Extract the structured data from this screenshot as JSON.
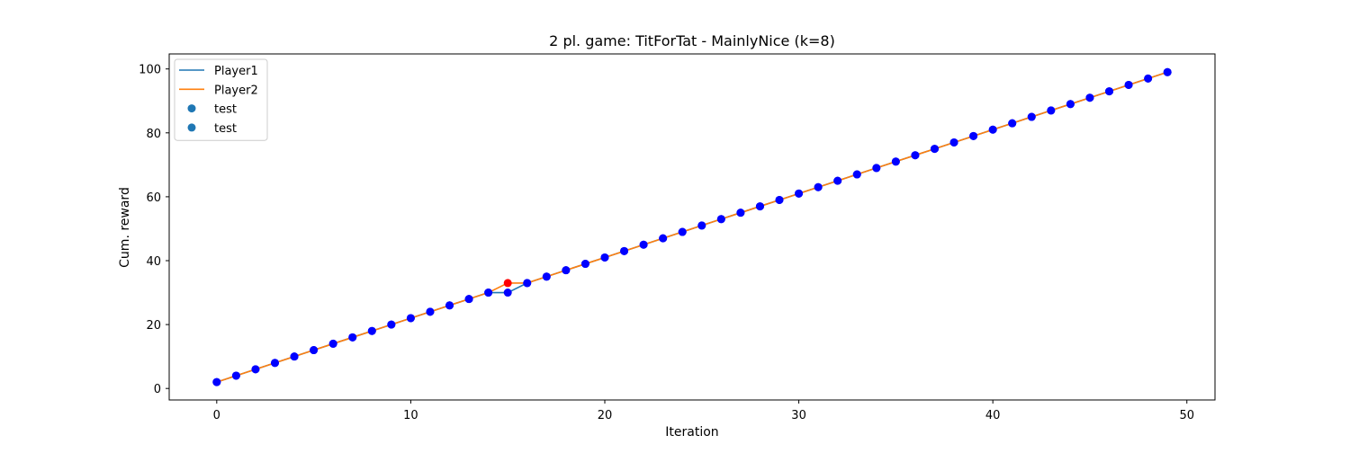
{
  "chart_data": {
    "type": "line",
    "title": "2 pl. game: TitForTat - MainlyNice (k=8)",
    "xlabel": "Iteration",
    "ylabel": "Cum. reward",
    "xlim": [
      -2.45,
      51.45
    ],
    "ylim": [
      -3.6,
      104.7
    ],
    "xticks": [
      0,
      10,
      20,
      30,
      40,
      50
    ],
    "yticks": [
      0,
      20,
      40,
      60,
      80,
      100
    ],
    "grid": false,
    "legend_position": "top-left",
    "x": [
      0,
      1,
      2,
      3,
      4,
      5,
      6,
      7,
      8,
      9,
      10,
      11,
      12,
      13,
      14,
      15,
      16,
      17,
      18,
      19,
      20,
      21,
      22,
      23,
      24,
      25,
      26,
      27,
      28,
      29,
      30,
      31,
      32,
      33,
      34,
      35,
      36,
      37,
      38,
      39,
      40,
      41,
      42,
      43,
      44,
      45,
      46,
      47,
      48,
      49
    ],
    "series": [
      {
        "name": "Player1",
        "kind": "line",
        "color": "#1f77b4",
        "values": [
          2,
          4,
          6,
          8,
          10,
          12,
          14,
          16,
          18,
          20,
          22,
          24,
          26,
          28,
          30,
          30,
          33,
          35,
          37,
          39,
          41,
          43,
          45,
          47,
          49,
          51,
          53,
          55,
          57,
          59,
          61,
          63,
          65,
          67,
          69,
          71,
          73,
          75,
          77,
          79,
          81,
          83,
          85,
          87,
          89,
          91,
          93,
          95,
          97,
          99
        ]
      },
      {
        "name": "Player2",
        "kind": "line",
        "color": "#ff7f0e",
        "values": [
          2,
          4,
          6,
          8,
          10,
          12,
          14,
          16,
          18,
          20,
          22,
          24,
          26,
          28,
          30,
          33,
          33,
          35,
          37,
          39,
          41,
          43,
          45,
          47,
          49,
          51,
          53,
          55,
          57,
          59,
          61,
          63,
          65,
          67,
          69,
          71,
          73,
          75,
          77,
          79,
          81,
          83,
          85,
          87,
          89,
          91,
          93,
          95,
          97,
          99
        ]
      }
    ],
    "markers": [
      {
        "name": "test",
        "kind": "scatter",
        "legend_color": "#1f77b4",
        "point_colors": [
          "#0000ff",
          "#0000ff",
          "#0000ff",
          "#0000ff",
          "#0000ff",
          "#0000ff",
          "#0000ff",
          "#0000ff",
          "#0000ff",
          "#0000ff",
          "#0000ff",
          "#0000ff",
          "#0000ff",
          "#0000ff",
          "#0000ff",
          "#0000ff",
          "#0000ff",
          "#0000ff",
          "#0000ff",
          "#0000ff",
          "#0000ff",
          "#0000ff",
          "#0000ff",
          "#0000ff",
          "#0000ff",
          "#0000ff",
          "#0000ff",
          "#0000ff",
          "#0000ff",
          "#0000ff",
          "#0000ff",
          "#0000ff",
          "#0000ff",
          "#0000ff",
          "#0000ff",
          "#0000ff",
          "#0000ff",
          "#0000ff",
          "#0000ff",
          "#0000ff",
          "#0000ff",
          "#0000ff",
          "#0000ff",
          "#0000ff",
          "#0000ff",
          "#0000ff",
          "#0000ff",
          "#0000ff",
          "#0000ff",
          "#0000ff"
        ],
        "values_ref": "Player1"
      },
      {
        "name": "test",
        "kind": "scatter",
        "legend_color": "#1f77b4",
        "point_colors": [
          "#0000ff",
          "#0000ff",
          "#0000ff",
          "#0000ff",
          "#0000ff",
          "#0000ff",
          "#0000ff",
          "#0000ff",
          "#0000ff",
          "#0000ff",
          "#0000ff",
          "#0000ff",
          "#0000ff",
          "#0000ff",
          "#0000ff",
          "#ff0000",
          "#0000ff",
          "#0000ff",
          "#0000ff",
          "#0000ff",
          "#0000ff",
          "#0000ff",
          "#0000ff",
          "#0000ff",
          "#0000ff",
          "#0000ff",
          "#0000ff",
          "#0000ff",
          "#0000ff",
          "#0000ff",
          "#0000ff",
          "#0000ff",
          "#0000ff",
          "#0000ff",
          "#0000ff",
          "#0000ff",
          "#0000ff",
          "#0000ff",
          "#0000ff",
          "#0000ff",
          "#0000ff",
          "#0000ff",
          "#0000ff",
          "#0000ff",
          "#0000ff",
          "#0000ff",
          "#0000ff",
          "#0000ff",
          "#0000ff",
          "#0000ff"
        ],
        "values_ref": "Player2"
      }
    ]
  }
}
